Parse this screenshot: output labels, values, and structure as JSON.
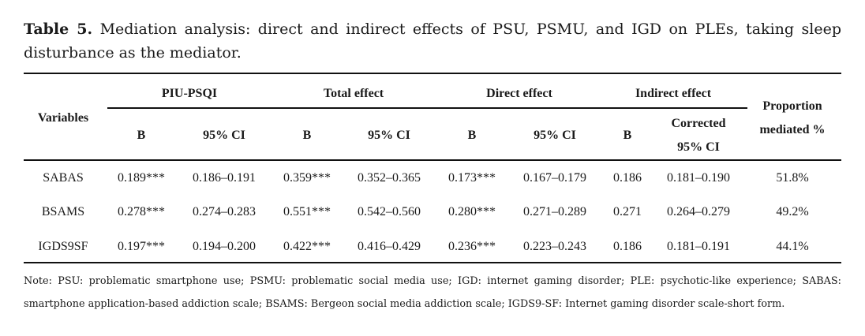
{
  "caption": {
    "label": "Table 5.",
    "text": "Mediation analysis: direct and indirect effects of PSU, PSMU, and IGD on PLEs, taking sleep disturbance as the mediator."
  },
  "table": {
    "header": {
      "variables": "Variables",
      "groups": [
        "PIU-PSQI",
        "Total effect",
        "Direct effect",
        "Indirect effect"
      ],
      "proportion": [
        "Proportion",
        "mediated %"
      ],
      "subcolumns": {
        "b": "B",
        "ci": "95% CI",
        "corrected_ci": [
          "Corrected",
          "95% CI"
        ]
      }
    },
    "rows": [
      {
        "variable": "SABAS",
        "cells": [
          "0.189***",
          "0.186–0.191",
          "0.359***",
          "0.352–0.365",
          "0.173***",
          "0.167–0.179",
          "0.186",
          "0.181–0.190",
          "51.8%"
        ]
      },
      {
        "variable": "BSAMS",
        "cells": [
          "0.278***",
          "0.274–0.283",
          "0.551***",
          "0.542–0.560",
          "0.280***",
          "0.271–0.289",
          "0.271",
          "0.264–0.279",
          "49.2%"
        ]
      },
      {
        "variable": "IGDS9SF",
        "cells": [
          "0.197***",
          "0.194–0.200",
          "0.422***",
          "0.416–0.429",
          "0.236***",
          "0.223–0.243",
          "0.186",
          "0.181–0.191",
          "44.1%"
        ]
      }
    ]
  },
  "note": "Note: PSU: problematic smartphone use; PSMU: problematic social media use; IGD: internet gaming disorder; PLE: psychotic-like experience; SABAS: smartphone application-based addiction scale; BSAMS: Bergeon social media addiction scale; IGDS9-SF: Internet gaming disorder scale-short form."
}
